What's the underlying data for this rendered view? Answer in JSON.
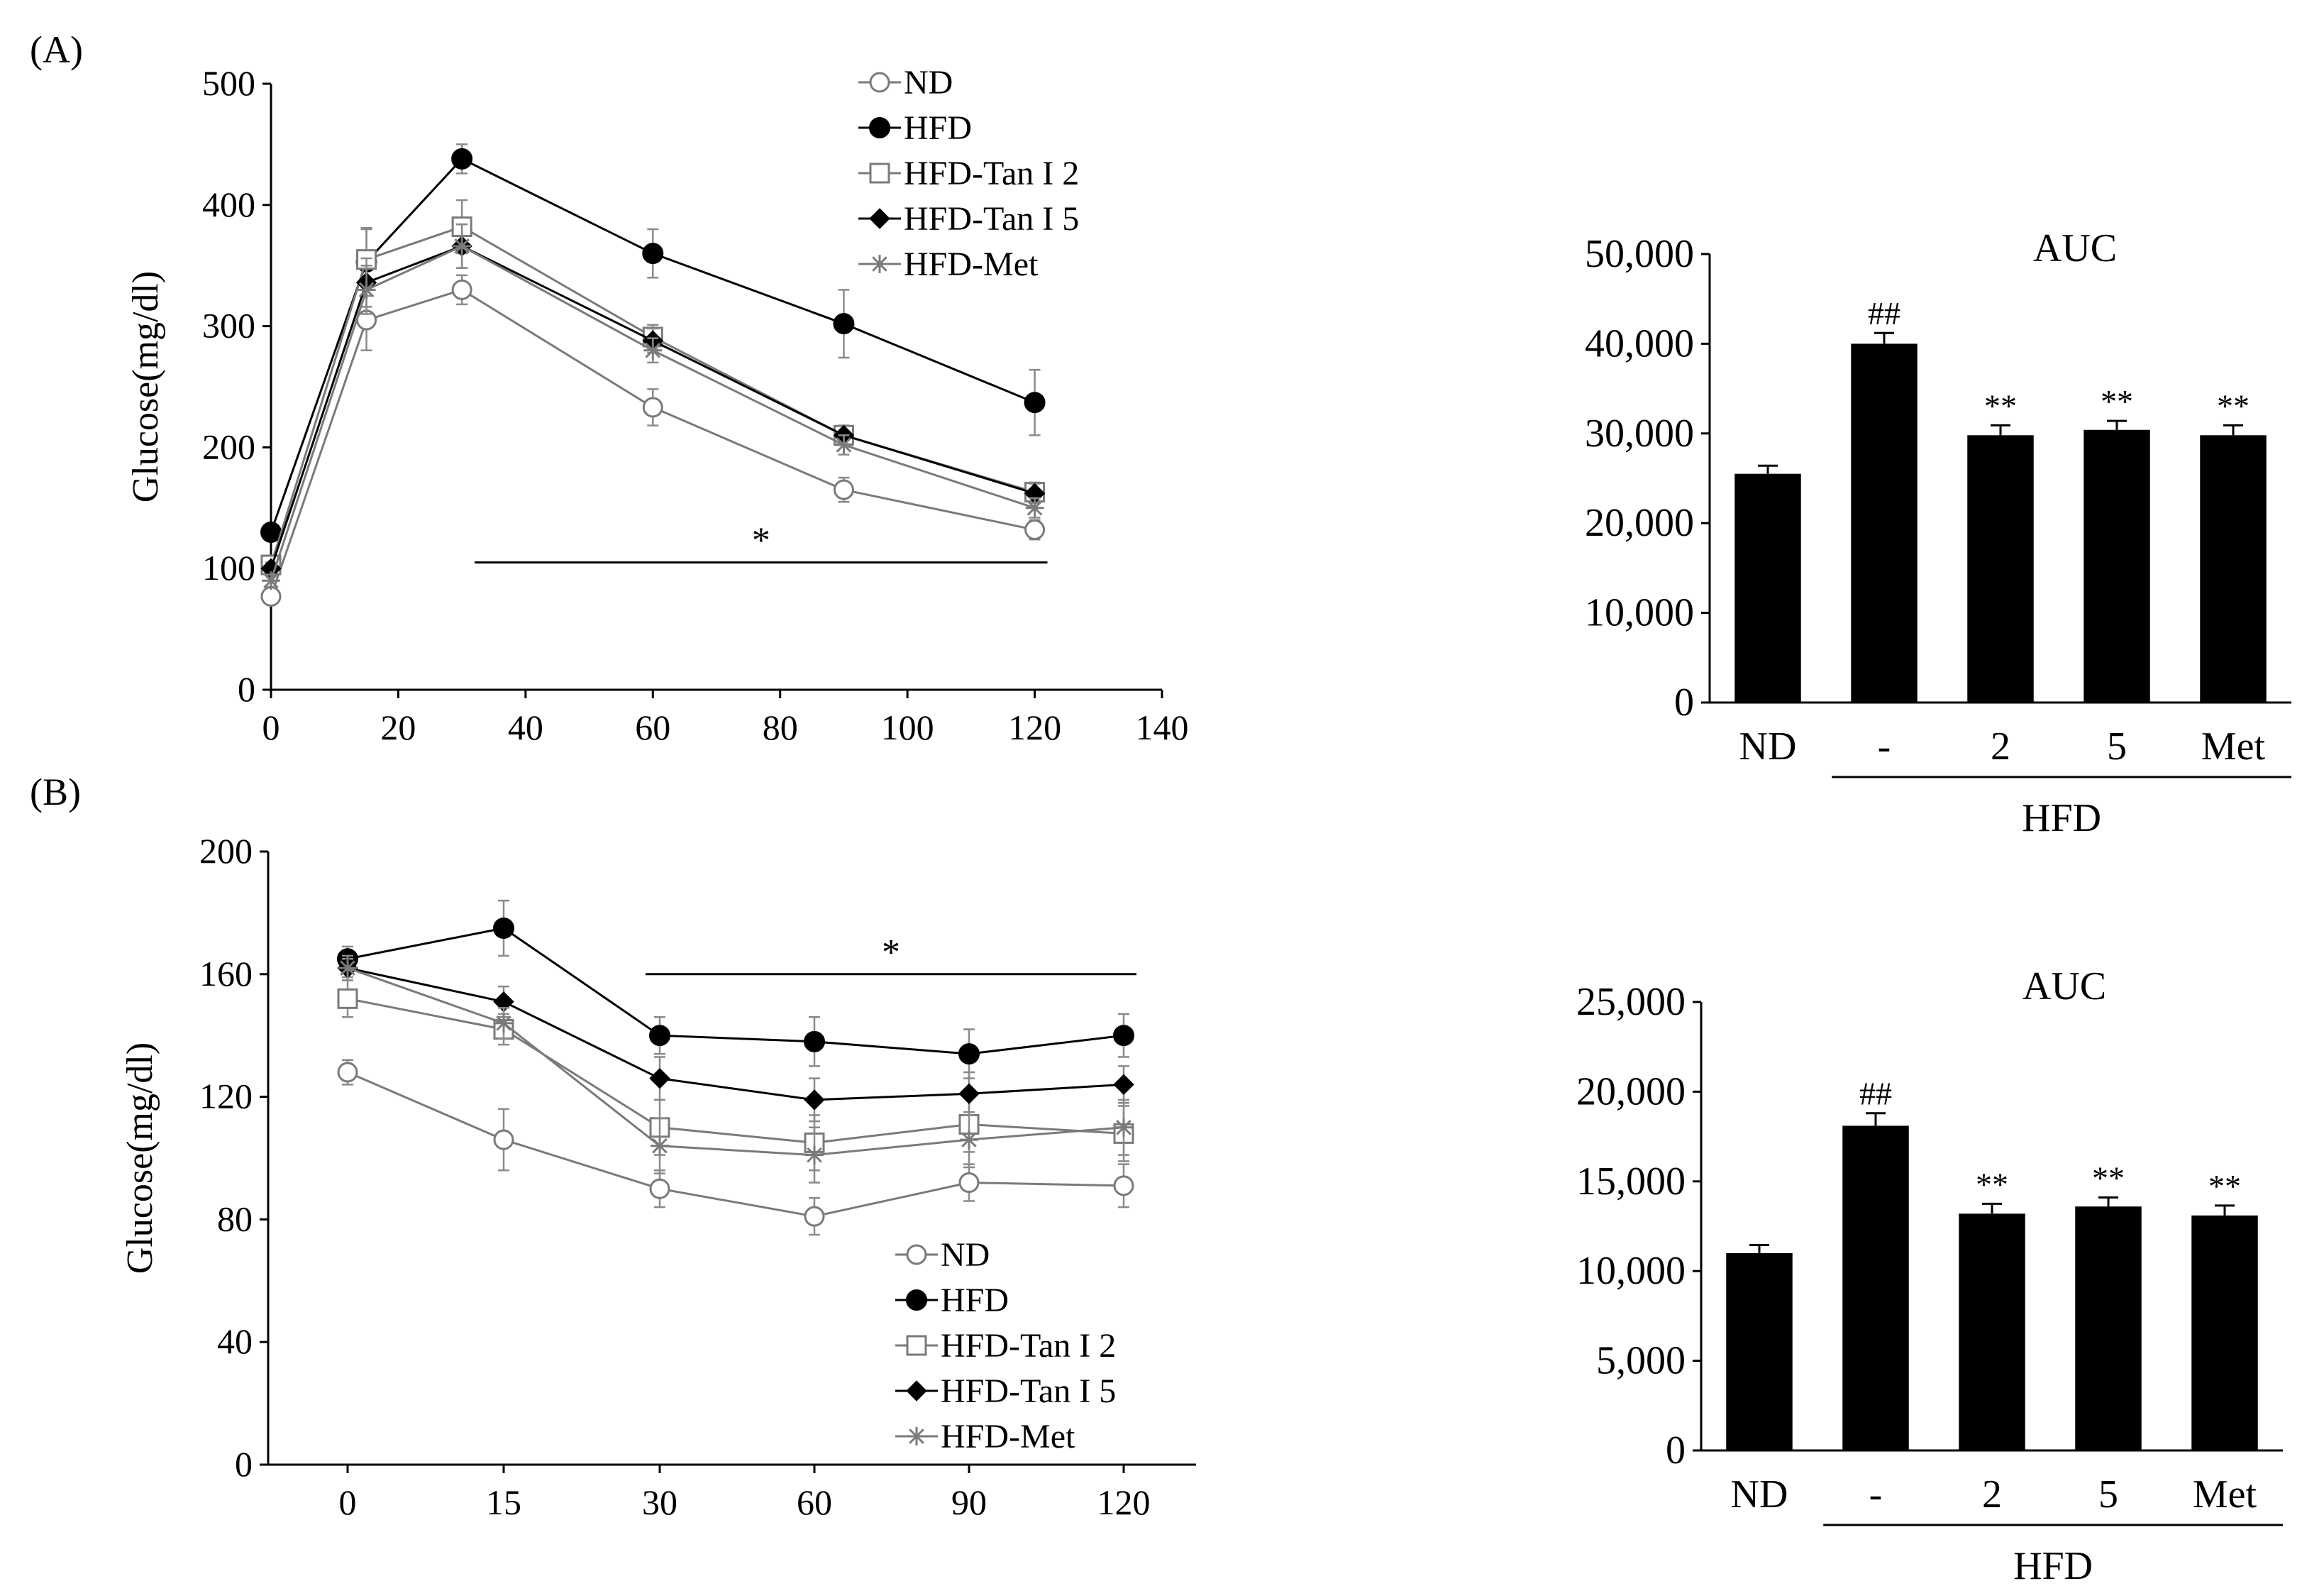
{
  "panels": {
    "a": {
      "label": "(A)"
    },
    "b": {
      "label": "(B)"
    }
  },
  "chart_data": [
    {
      "id": "A-line",
      "type": "line",
      "title": "",
      "xlabel": "",
      "ylabel": "Glucose(mg/dl)",
      "xlim": [
        0,
        140
      ],
      "ylim": [
        0,
        500
      ],
      "x_ticks": [
        0,
        20,
        40,
        60,
        80,
        100,
        120,
        140
      ],
      "y_ticks": [
        0,
        100,
        200,
        300,
        400,
        500
      ],
      "x": [
        0,
        15,
        30,
        60,
        90,
        120
      ],
      "series": [
        {
          "name": "ND",
          "marker": "open-circle",
          "color": "#808080",
          "values": [
            77,
            305,
            330,
            233,
            165,
            132
          ],
          "err": [
            4,
            25,
            12,
            15,
            10,
            8
          ]
        },
        {
          "name": "HFD",
          "marker": "filled-circle",
          "color": "#000000",
          "values": [
            130,
            353,
            438,
            360,
            302,
            237
          ],
          "err": [
            5,
            28,
            12,
            20,
            28,
            27
          ]
        },
        {
          "name": "HFD-Tan I 2",
          "marker": "open-square",
          "color": "#808080",
          "values": [
            103,
            355,
            382,
            291,
            210,
            163
          ],
          "err": [
            5,
            25,
            22,
            10,
            8,
            8
          ]
        },
        {
          "name": "HFD-Tan I 5",
          "marker": "filled-diamond",
          "color": "#000000",
          "values": [
            100,
            336,
            366,
            288,
            210,
            162
          ],
          "err": [
            5,
            20,
            18,
            10,
            8,
            8
          ]
        },
        {
          "name": "HFD-Met",
          "marker": "star",
          "color": "#808080",
          "values": [
            90,
            330,
            366,
            280,
            202,
            150
          ],
          "err": [
            5,
            20,
            18,
            10,
            8,
            8
          ]
        }
      ],
      "annotations": [
        {
          "text": "*",
          "x_from": 32,
          "x_to": 122,
          "y": 105
        }
      ]
    },
    {
      "id": "A-bar",
      "type": "bar",
      "title": "AUC",
      "ylim": [
        0,
        50000
      ],
      "y_ticks": [
        0,
        10000,
        20000,
        30000,
        40000,
        50000
      ],
      "y_tick_labels": [
        "0",
        "10,000",
        "20,000",
        "30,000",
        "40,000",
        "50,000"
      ],
      "categories": [
        "ND",
        "-",
        "2",
        "5",
        "Met"
      ],
      "values": [
        25500,
        40000,
        29800,
        30400,
        29800
      ],
      "err": [
        900,
        1200,
        1100,
        1000,
        1100
      ],
      "sig": [
        "",
        "##",
        "**",
        "**",
        "**"
      ],
      "group_label": "HFD"
    },
    {
      "id": "B-line",
      "type": "line",
      "title": "",
      "xlabel": "",
      "ylabel": "Glucose(mg/dl)",
      "ylim": [
        0,
        200
      ],
      "y_ticks": [
        0,
        40,
        80,
        120,
        160,
        200
      ],
      "x": [
        0,
        15,
        30,
        60,
        90,
        120
      ],
      "series": [
        {
          "name": "ND",
          "marker": "open-circle",
          "color": "#808080",
          "values": [
            128,
            106,
            90,
            81,
            92,
            91
          ],
          "err": [
            4,
            10,
            6,
            6,
            6,
            7
          ]
        },
        {
          "name": "HFD",
          "marker": "filled-circle",
          "color": "#000000",
          "values": [
            165,
            175,
            140,
            138,
            134,
            140
          ],
          "err": [
            4,
            9,
            6,
            8,
            8,
            7
          ]
        },
        {
          "name": "HFD-Tan I 2",
          "marker": "open-square",
          "color": "#808080",
          "values": [
            152,
            142,
            110,
            105,
            111,
            108
          ],
          "err": [
            6,
            5,
            9,
            9,
            9,
            9
          ]
        },
        {
          "name": "HFD-Tan I 5",
          "marker": "filled-diamond",
          "color": "#000000",
          "values": [
            162,
            151,
            126,
            119,
            121,
            124
          ],
          "err": [
            3,
            5,
            7,
            7,
            7,
            6
          ]
        },
        {
          "name": "HFD-Met",
          "marker": "star",
          "color": "#808080",
          "values": [
            162,
            144,
            104,
            101,
            106,
            110
          ],
          "err": [
            4,
            5,
            9,
            9,
            9,
            9
          ]
        }
      ],
      "annotations": [
        {
          "text": "*",
          "x_from": 30,
          "x_to": 120,
          "y": 160
        }
      ]
    },
    {
      "id": "B-bar",
      "type": "bar",
      "title": "AUC",
      "ylim": [
        0,
        25000
      ],
      "y_ticks": [
        0,
        5000,
        10000,
        15000,
        20000,
        25000
      ],
      "y_tick_labels": [
        "0",
        "5,000",
        "10,000",
        "15,000",
        "20,000",
        "25,000"
      ],
      "categories": [
        "ND",
        "-",
        "2",
        "5",
        "Met"
      ],
      "values": [
        11000,
        18100,
        13200,
        13600,
        13100
      ],
      "err": [
        450,
        700,
        550,
        500,
        550
      ],
      "sig": [
        "",
        "##",
        "**",
        "**",
        "**"
      ],
      "group_label": "HFD"
    }
  ]
}
